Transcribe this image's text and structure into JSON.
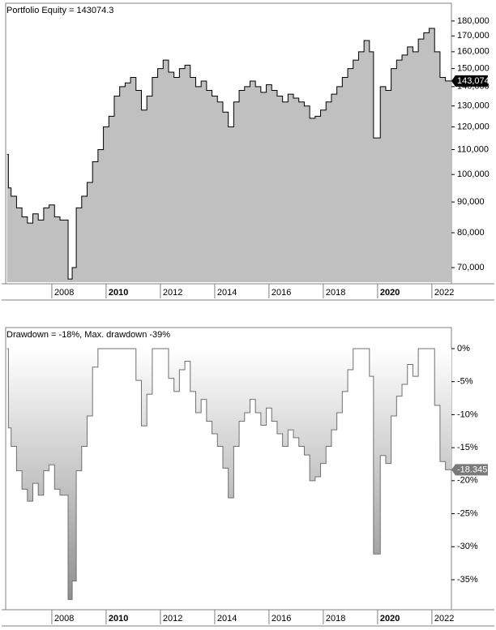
{
  "chart_data": [
    {
      "type": "area",
      "title": "Portfolio Equity = 143074.3",
      "log": true,
      "color": "#c0c0c0",
      "line_color": "#000000",
      "x": [
        2006.35,
        2006.4,
        2006.5,
        2006.7,
        2006.9,
        2007.1,
        2007.3,
        2007.5,
        2007.7,
        2007.9,
        2008.1,
        2008.3,
        2008.6,
        2008.75,
        2008.9,
        2009.1,
        2009.3,
        2009.5,
        2009.7,
        2009.9,
        2010.1,
        2010.3,
        2010.5,
        2010.7,
        2010.9,
        2011.1,
        2011.3,
        2011.5,
        2011.7,
        2011.9,
        2012.1,
        2012.3,
        2012.5,
        2012.7,
        2012.9,
        2013.1,
        2013.3,
        2013.5,
        2013.7,
        2013.9,
        2014.1,
        2014.3,
        2014.5,
        2014.7,
        2014.9,
        2015.1,
        2015.3,
        2015.5,
        2015.7,
        2015.9,
        2016.1,
        2016.3,
        2016.5,
        2016.7,
        2016.9,
        2017.1,
        2017.3,
        2017.5,
        2017.7,
        2017.9,
        2018.1,
        2018.3,
        2018.5,
        2018.7,
        2018.9,
        2019.1,
        2019.3,
        2019.5,
        2019.7,
        2019.85,
        2020.1,
        2020.3,
        2020.5,
        2020.7,
        2020.9,
        2021.1,
        2021.3,
        2021.5,
        2021.7,
        2021.9,
        2022.1,
        2022.3,
        2022.5
      ],
      "values": [
        108000,
        95000,
        92000,
        88000,
        85000,
        83000,
        86000,
        84000,
        88000,
        89000,
        85000,
        84000,
        67000,
        70000,
        88000,
        92000,
        97000,
        105000,
        110000,
        120000,
        125000,
        135000,
        140000,
        142000,
        145000,
        138000,
        128000,
        135000,
        145000,
        150000,
        155000,
        148000,
        145000,
        150000,
        152000,
        145000,
        140000,
        143000,
        138000,
        135000,
        132000,
        127000,
        120000,
        132000,
        138000,
        140000,
        143000,
        140000,
        137000,
        141000,
        138000,
        135000,
        132000,
        136000,
        134000,
        132000,
        130000,
        124000,
        125000,
        128000,
        132000,
        136000,
        140000,
        145000,
        150000,
        155000,
        160000,
        167000,
        160000,
        115000,
        140000,
        138000,
        150000,
        155000,
        158000,
        163000,
        160000,
        168000,
        172000,
        175000,
        160000,
        145000,
        143074.3
      ],
      "last_label": "143,074",
      "xlim": [
        2006.3,
        2022.72
      ],
      "xticks": [
        2008,
        2010,
        2012,
        2014,
        2016,
        2018,
        2020,
        2022
      ],
      "ylim": [
        66200,
        190300
      ],
      "yticks": [
        {
          "value": 70000,
          "label": "70,000"
        },
        {
          "value": 80000,
          "label": "80,000"
        },
        {
          "value": 90000,
          "label": "90,000"
        },
        {
          "value": 100000,
          "label": "100,000"
        },
        {
          "value": 110000,
          "label": "110,000"
        },
        {
          "value": 120000,
          "label": "120,000"
        },
        {
          "value": 130000,
          "label": "130,000"
        },
        {
          "value": 140000,
          "label": "140,000"
        },
        {
          "value": 150000,
          "label": "150,000"
        },
        {
          "value": 160000,
          "label": "160,000"
        },
        {
          "value": 170000,
          "label": "170,000"
        },
        {
          "value": 180000,
          "label": "180,000"
        }
      ]
    },
    {
      "type": "drawdown",
      "title": "Drawdown = -18%, Max. drawdown -39%",
      "log": false,
      "color": "#a8a8a8",
      "line_color": "#707070",
      "x": [
        2006.35,
        2006.4,
        2006.5,
        2006.7,
        2006.9,
        2007.1,
        2007.3,
        2007.5,
        2007.7,
        2007.9,
        2008.1,
        2008.3,
        2008.6,
        2008.75,
        2008.9,
        2009.1,
        2009.3,
        2009.5,
        2009.7,
        2009.9,
        2010.1,
        2010.3,
        2010.5,
        2010.7,
        2010.9,
        2011.1,
        2011.3,
        2011.5,
        2011.7,
        2011.9,
        2012.1,
        2012.3,
        2012.5,
        2012.7,
        2012.9,
        2013.1,
        2013.3,
        2013.5,
        2013.7,
        2013.9,
        2014.1,
        2014.3,
        2014.5,
        2014.7,
        2014.9,
        2015.1,
        2015.3,
        2015.5,
        2015.7,
        2015.9,
        2016.1,
        2016.3,
        2016.5,
        2016.7,
        2016.9,
        2017.1,
        2017.3,
        2017.5,
        2017.7,
        2017.9,
        2018.1,
        2018.3,
        2018.5,
        2018.7,
        2018.9,
        2019.1,
        2019.3,
        2019.5,
        2019.7,
        2019.85,
        2020.1,
        2020.3,
        2020.5,
        2020.7,
        2020.9,
        2021.1,
        2021.3,
        2021.5,
        2021.7,
        2021.9,
        2022.1,
        2022.3,
        2022.5
      ],
      "values": [
        0,
        -12,
        -14.8,
        -18.5,
        -21.3,
        -23.1,
        -20.4,
        -22.2,
        -18.5,
        -17.6,
        -21.3,
        -22.2,
        -38,
        -35.2,
        -18.5,
        -14.8,
        -10.2,
        -2.8,
        0,
        0,
        0,
        0,
        0,
        0,
        0,
        -4.8,
        -11.7,
        -6.9,
        0,
        0,
        0,
        -4.5,
        -6.5,
        -3.2,
        -1.9,
        -6.5,
        -9.7,
        -7.7,
        -11,
        -12.9,
        -14.8,
        -18.1,
        -22.6,
        -14.8,
        -11,
        -9.7,
        -7.7,
        -9.7,
        -11.6,
        -9,
        -11,
        -12.9,
        -14.8,
        -12.3,
        -13.5,
        -14.8,
        -16.1,
        -20,
        -19.4,
        -17.4,
        -14.8,
        -12.3,
        -9.7,
        -6.5,
        -3.2,
        0,
        0,
        0,
        -4.2,
        -31.1,
        -16.2,
        -17.4,
        -10.2,
        -7.2,
        -5.4,
        -2.4,
        -4.2,
        0,
        0,
        0,
        -8.6,
        -17.1,
        -18.345
      ],
      "xlim": [
        2006.3,
        2022.72
      ],
      "xticks": [
        2008,
        2010,
        2012,
        2014,
        2016,
        2018,
        2020,
        2022
      ],
      "ylim": [
        -39.3,
        2.7
      ],
      "yticks": [
        {
          "value": 0,
          "label": "0%"
        },
        {
          "value": -5,
          "label": "-5%"
        },
        {
          "value": -10,
          "label": "-10%"
        },
        {
          "value": -15,
          "label": "-15%"
        },
        {
          "value": -20,
          "label": "-20%"
        },
        {
          "value": -25,
          "label": "-25%"
        },
        {
          "value": -30,
          "label": "-30%"
        },
        {
          "value": -35,
          "label": "-35%"
        }
      ]
    }
  ]
}
